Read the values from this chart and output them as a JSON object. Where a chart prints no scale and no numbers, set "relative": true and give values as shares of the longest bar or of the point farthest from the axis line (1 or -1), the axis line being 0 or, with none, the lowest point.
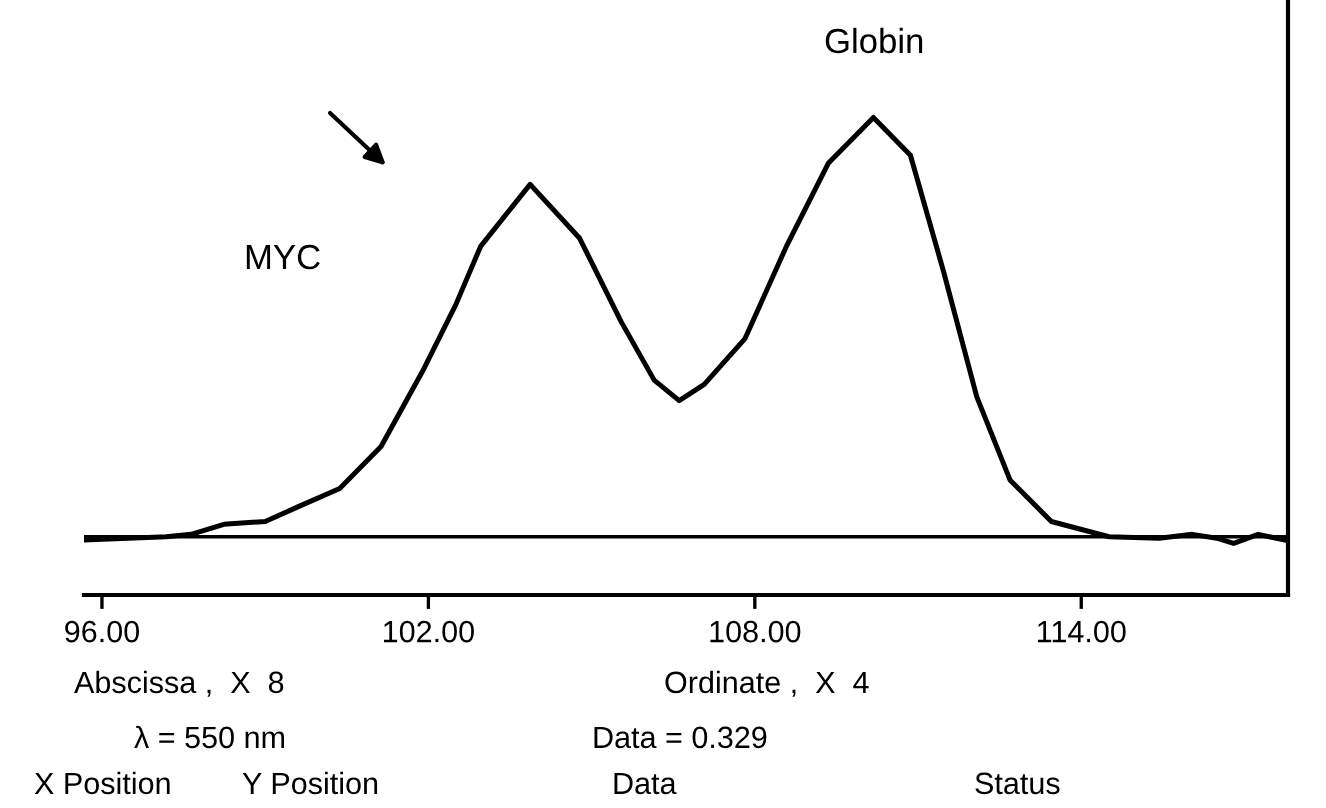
{
  "chart_data": {
    "type": "line",
    "relative": true,
    "x": [
      95.67,
      97.18,
      97.64,
      98.24,
      99.0,
      99.61,
      100.37,
      101.13,
      101.89,
      102.5,
      102.96,
      103.87,
      104.78,
      105.54,
      106.15,
      106.61,
      107.07,
      107.82,
      108.58,
      109.35,
      110.18,
      110.86,
      111.47,
      112.08,
      112.69,
      113.45,
      114.51,
      115.43,
      116.04,
      116.49,
      116.8,
      117.25,
      117.78
    ],
    "series": [
      {
        "color": "#000000",
        "values": [
          0.115,
          0.122,
          0.127,
          0.148,
          0.154,
          0.185,
          0.223,
          0.311,
          0.468,
          0.607,
          0.73,
          0.86,
          0.747,
          0.573,
          0.45,
          0.407,
          0.441,
          0.537,
          0.73,
          0.904,
          1.0,
          0.921,
          0.677,
          0.415,
          0.241,
          0.154,
          0.122,
          0.119,
          0.127,
          0.119,
          0.108,
          0.127,
          0.114
        ]
      }
    ],
    "xlim": [
      95.67,
      117.8
    ],
    "xticks": [
      {
        "value": 96,
        "label": "96.00"
      },
      {
        "value": 102,
        "label": "102.00"
      },
      {
        "value": 108,
        "label": "108.00"
      },
      {
        "value": 114,
        "label": "114.00"
      }
    ],
    "ref_lines": [
      {
        "axis": "y",
        "value": 0.122,
        "color": "#000000"
      }
    ],
    "tick_labels": "x",
    "grid": false,
    "legend": false,
    "marker": "none",
    "line_style": "solid",
    "annotations": [
      "MYC",
      "Globin",
      "Abscissa ,  X  8",
      "Ordinate ,  X  4",
      "λ = 550 nm",
      "Data = 0.329",
      "X Position",
      "Y Position",
      "Data",
      "Status"
    ]
  }
}
